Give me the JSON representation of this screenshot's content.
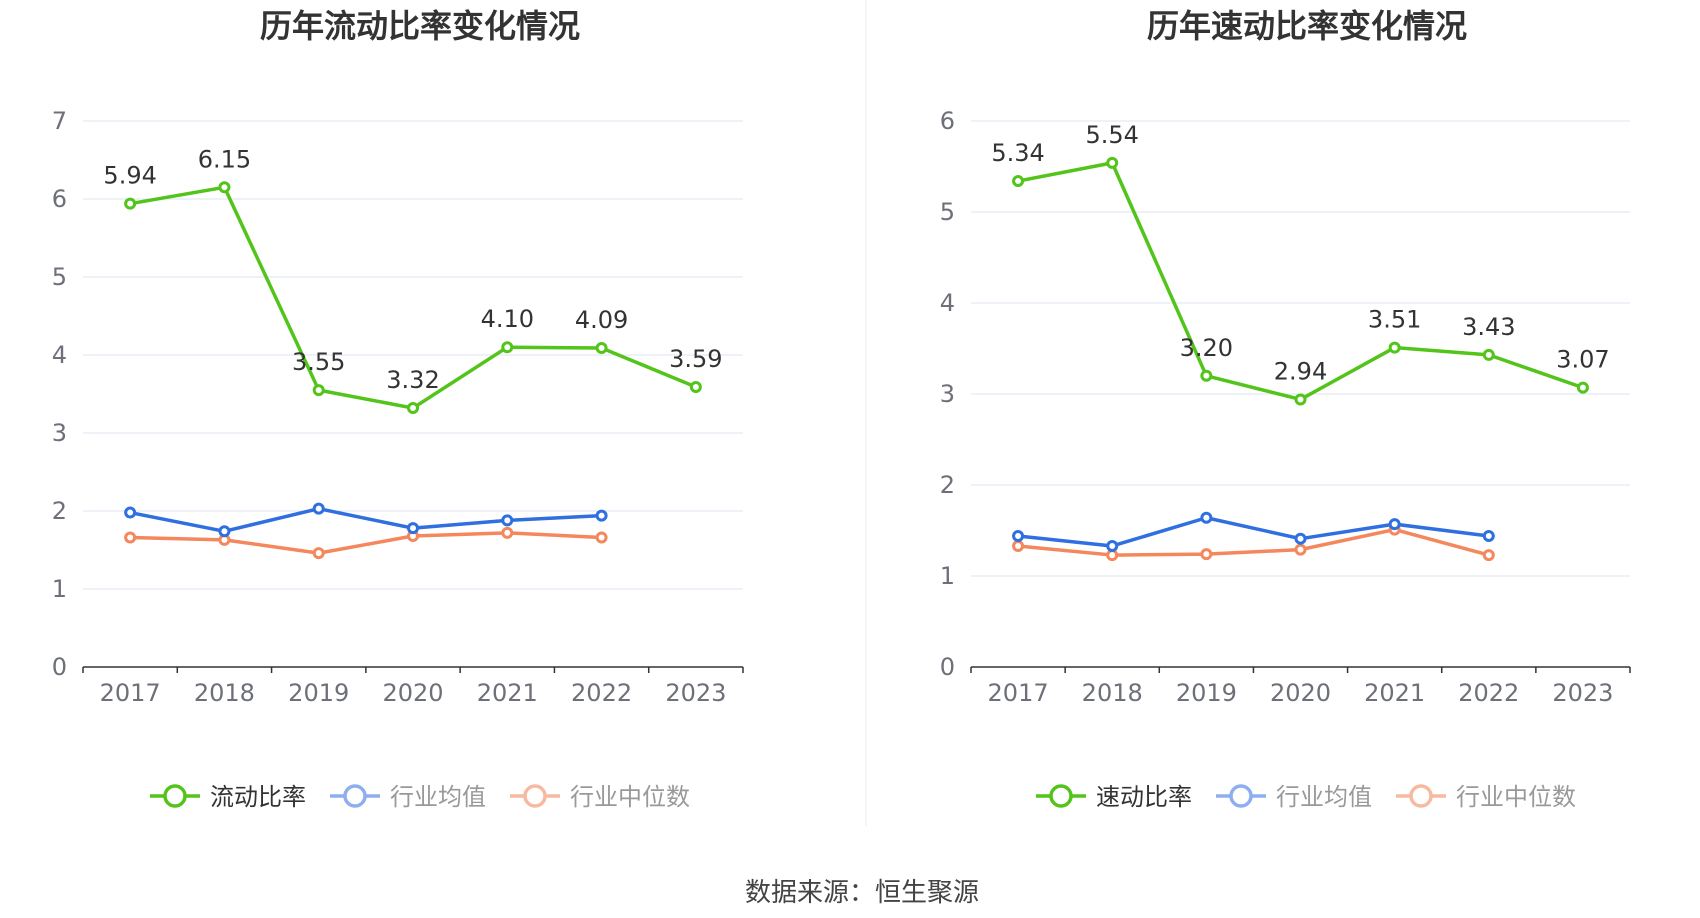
{
  "footer": "数据来源：恒生聚源",
  "colors": {
    "primary": "#52c41a",
    "average": "#2f6fdf",
    "median": "#f4875c",
    "legend_average": "#8eaef0",
    "legend_median": "#f7b9a0",
    "grid": "#dde3ef",
    "axis": "#333333"
  },
  "chart_data": [
    {
      "type": "line",
      "title": "历年流动比率变化情况",
      "categories": [
        "2017",
        "2018",
        "2019",
        "2020",
        "2021",
        "2022",
        "2023"
      ],
      "ylim": [
        0,
        7
      ],
      "yticks": [
        "0",
        "1",
        "2",
        "3",
        "4",
        "5",
        "6",
        "7"
      ],
      "grid": true,
      "legend_position": "bottom",
      "series": [
        {
          "name": "流动比率",
          "values": [
            5.94,
            6.15,
            3.55,
            3.32,
            4.1,
            4.09,
            3.59
          ],
          "labels": [
            "5.94",
            "6.15",
            "3.55",
            "3.32",
            "4.10",
            "4.09",
            "3.59"
          ]
        },
        {
          "name": "行业均值",
          "values": [
            1.98,
            1.74,
            2.03,
            1.78,
            1.88,
            1.94,
            null
          ]
        },
        {
          "name": "行业中位数",
          "values": [
            1.66,
            1.63,
            1.46,
            1.68,
            1.72,
            1.66,
            null
          ]
        }
      ]
    },
    {
      "type": "line",
      "title": "历年速动比率变化情况",
      "categories": [
        "2017",
        "2018",
        "2019",
        "2020",
        "2021",
        "2022",
        "2023"
      ],
      "ylim": [
        0,
        6
      ],
      "yticks": [
        "0",
        "1",
        "2",
        "3",
        "4",
        "5",
        "6"
      ],
      "grid": true,
      "legend_position": "bottom",
      "series": [
        {
          "name": "速动比率",
          "values": [
            5.34,
            5.54,
            3.2,
            2.94,
            3.51,
            3.43,
            3.07
          ],
          "labels": [
            "5.34",
            "5.54",
            "3.20",
            "2.94",
            "3.51",
            "3.43",
            "3.07"
          ]
        },
        {
          "name": "行业均值",
          "values": [
            1.44,
            1.33,
            1.64,
            1.41,
            1.57,
            1.44,
            null
          ]
        },
        {
          "name": "行业中位数",
          "values": [
            1.33,
            1.23,
            1.24,
            1.29,
            1.51,
            1.23,
            null
          ]
        }
      ]
    }
  ]
}
